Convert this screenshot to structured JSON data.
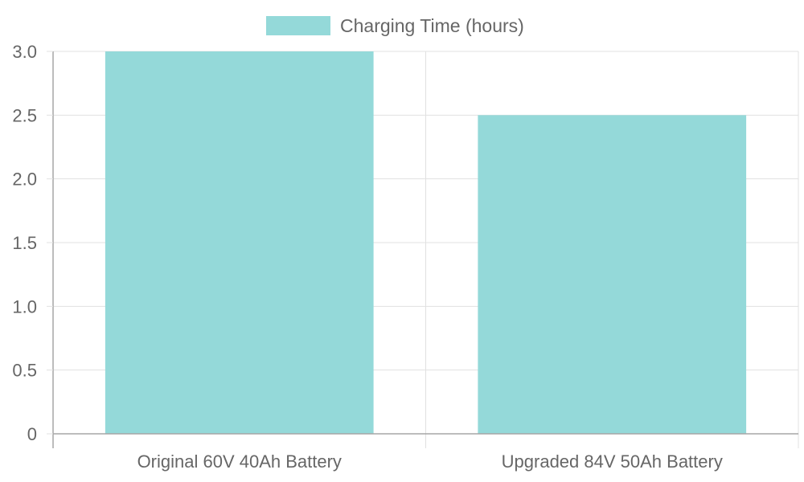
{
  "chart_data": {
    "type": "bar",
    "categories": [
      "Original 60V 40Ah Battery",
      "Upgraded 84V 50Ah Battery"
    ],
    "series": [
      {
        "name": "Charging Time (hours)",
        "values": [
          3.0,
          2.5
        ],
        "color": "#94d9d9"
      }
    ],
    "ylim": [
      0,
      3.0
    ],
    "yticks": [
      "0",
      "0.5",
      "1.0",
      "1.5",
      "2.0",
      "2.5",
      "3.0"
    ],
    "ytick_values": [
      0,
      0.5,
      1.0,
      1.5,
      2.0,
      2.5,
      3.0
    ],
    "grid": true,
    "legend_position": "top-center",
    "grid_color": "#e1e1e1",
    "axis_color": "#a6a6a6"
  }
}
